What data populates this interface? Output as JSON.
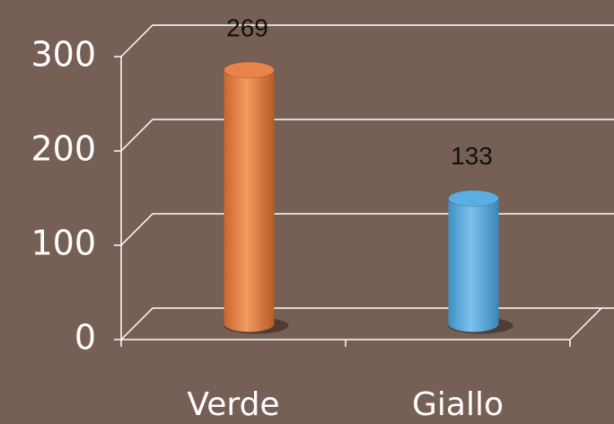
{
  "chart_data": {
    "type": "bar3d",
    "categories": [
      "Verde",
      "Giallo"
    ],
    "values": [
      269,
      133
    ],
    "colors": [
      "#e8834a",
      "#5aaee0"
    ],
    "ylim": [
      0,
      300
    ],
    "yticks": [
      0,
      100,
      200,
      300
    ],
    "grid": true
  }
}
